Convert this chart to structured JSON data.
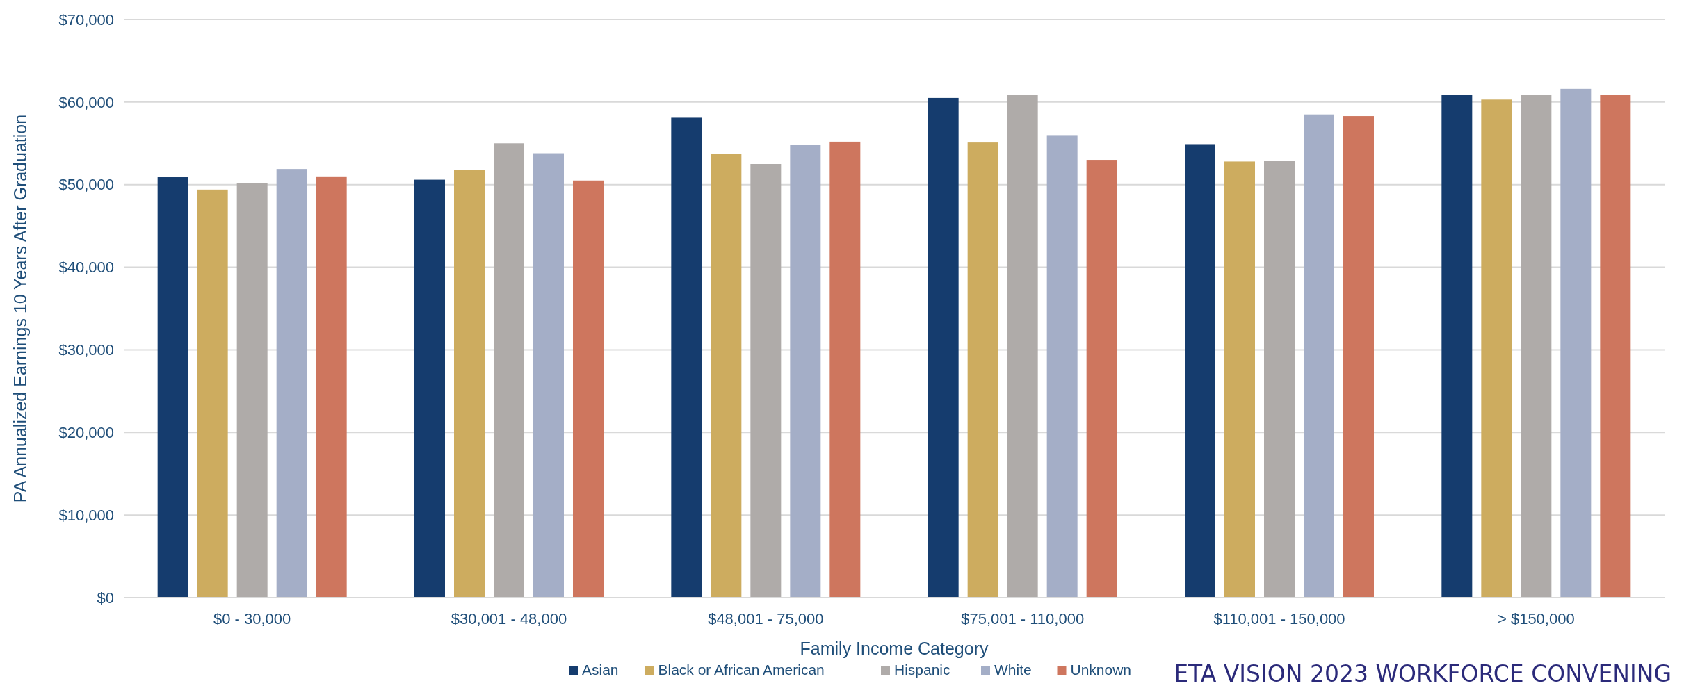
{
  "chart_data": {
    "type": "bar",
    "xlabel": "Family Income Category",
    "ylabel": "PA Annualized Earnings 10 Years After Graduation",
    "categories": [
      "$0 - 30,000",
      "$30,001 - 48,000",
      "$48,001 - 75,000",
      "$75,001 - 110,000",
      "$110,001 - 150,000",
      "> $150,000"
    ],
    "series": [
      {
        "name": "Asian",
        "color": "#153c6e",
        "values": [
          50900,
          50600,
          58100,
          60500,
          54900,
          60900
        ]
      },
      {
        "name": "Black or African American",
        "color": "#cdac5f",
        "values": [
          49400,
          51800,
          53700,
          55100,
          52800,
          60300
        ]
      },
      {
        "name": "Hispanic",
        "color": "#afaba9",
        "values": [
          50200,
          55000,
          52500,
          60900,
          52900,
          60900
        ]
      },
      {
        "name": "White",
        "color": "#a4aec7",
        "values": [
          51900,
          53800,
          54800,
          56000,
          58500,
          61600
        ]
      },
      {
        "name": "Unknown",
        "color": "#ce765e",
        "values": [
          51000,
          50500,
          55200,
          53000,
          58300,
          60900
        ]
      }
    ],
    "ylim": [
      0,
      70000
    ],
    "yticks": [
      {
        "value": 0,
        "label": "$0"
      },
      {
        "value": 10000,
        "label": "$10,000"
      },
      {
        "value": 20000,
        "label": "$20,000"
      },
      {
        "value": 30000,
        "label": "$30,000"
      },
      {
        "value": 40000,
        "label": "$40,000"
      },
      {
        "value": 50000,
        "label": "$50,000"
      },
      {
        "value": 60000,
        "label": "$60,000"
      },
      {
        "value": 70000,
        "label": "$70,000"
      }
    ],
    "grid": "y",
    "legend": "bottom",
    "annotations": [
      "ETA VISION 2023 WORKFORCE CONVENING"
    ]
  }
}
